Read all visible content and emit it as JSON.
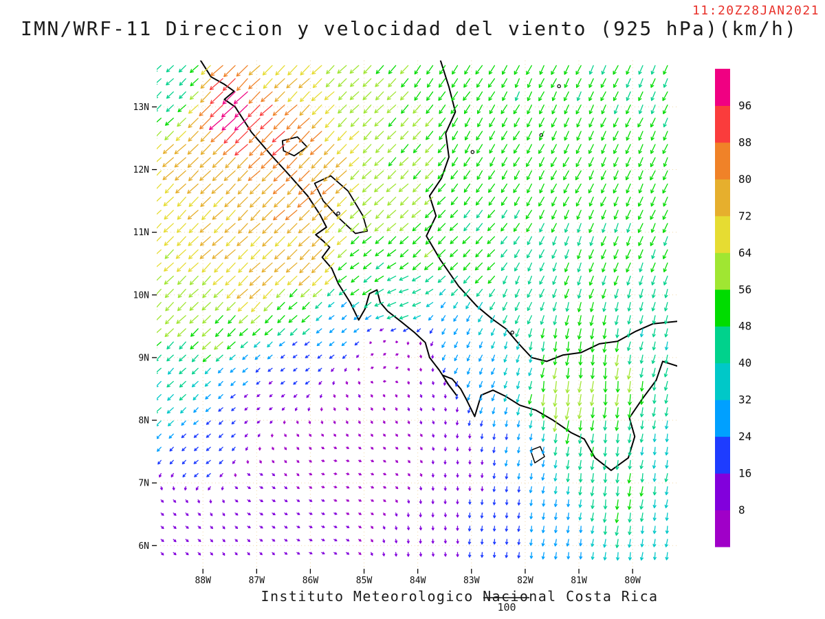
{
  "title": "IMN/WRF-11 Direccion y velocidad del viento (925 hPa)(km/h)",
  "timestamp": "11:20Z28JAN2021",
  "footer": {
    "credit": "Instituto Meteorologico Nacional Costa Rica",
    "vector_ref_label": "100"
  },
  "style": {
    "timestamp_color": "#e8312a",
    "grid_color": "#e0a83c",
    "coast_color": "#000000",
    "text_color": "#0f0f0f"
  },
  "chart_data": {
    "type": "vector-field-map",
    "model": "IMN/WRF-11",
    "field": "Direccion y velocidad del viento",
    "level": "925 hPa",
    "units": "km/h",
    "valid_time": "11:20Z28JAN2021",
    "axes": {
      "extent": {
        "lon_west": 88.86,
        "lon_east": 79.17,
        "lat_south": 5.63,
        "lat_north": 13.74
      },
      "lat_ticks": [
        {
          "value": 13,
          "label": "13N"
        },
        {
          "value": 12,
          "label": "12N"
        },
        {
          "value": 11,
          "label": "11N"
        },
        {
          "value": 10,
          "label": "10N"
        },
        {
          "value": 9,
          "label": "9N"
        },
        {
          "value": 8,
          "label": "8N"
        },
        {
          "value": 7,
          "label": "7N"
        },
        {
          "value": 6,
          "label": "6N"
        }
      ],
      "lon_ticks": [
        {
          "value": 88,
          "label": "88W"
        },
        {
          "value": 87,
          "label": "87W"
        },
        {
          "value": 86,
          "label": "86W"
        },
        {
          "value": 85,
          "label": "85W"
        },
        {
          "value": 84,
          "label": "84W"
        },
        {
          "value": 83,
          "label": "83W"
        },
        {
          "value": 82,
          "label": "82W"
        },
        {
          "value": 81,
          "label": "81W"
        },
        {
          "value": 80,
          "label": "80W"
        }
      ]
    },
    "colorbar": {
      "orientation": "vertical",
      "levels": [
        8,
        16,
        24,
        32,
        40,
        48,
        56,
        64,
        72,
        80,
        88,
        96
      ],
      "colors": [
        "#a000c8",
        "#8200dc",
        "#1e3cff",
        "#00a0ff",
        "#00c8c8",
        "#00d28c",
        "#00dc00",
        "#a0e632",
        "#e6dc32",
        "#e6af2d",
        "#f08228",
        "#fa3c3c",
        "#f00082"
      ]
    },
    "vector_reference_kmh": 100,
    "wind_grid_spacing_deg": {
      "lon": 0.23,
      "lat": 0.21
    },
    "wind_controls": [
      [
        88.6,
        13.4,
        -33,
        -32
      ],
      [
        87.3,
        13.0,
        -70,
        -68
      ],
      [
        86.5,
        12.6,
        -62,
        -60
      ],
      [
        87.9,
        12.2,
        -54,
        -53
      ],
      [
        88.7,
        11.4,
        -48,
        -47
      ],
      [
        86.9,
        11.5,
        -55,
        -54
      ],
      [
        85.9,
        11.9,
        -58,
        -57
      ],
      [
        85.9,
        10.6,
        -54,
        -53
      ],
      [
        86.9,
        10.2,
        -52,
        -51
      ],
      [
        88.6,
        9.9,
        -44,
        -43
      ],
      [
        87.6,
        9.4,
        -40,
        -40
      ],
      [
        88.6,
        8.6,
        -28,
        -28
      ],
      [
        87.9,
        7.6,
        -16,
        -14
      ],
      [
        88.5,
        6.3,
        8,
        -7
      ],
      [
        87.0,
        6.8,
        9,
        -5
      ],
      [
        85.8,
        6.3,
        8,
        -4
      ],
      [
        86.3,
        7.6,
        5,
        -6
      ],
      [
        84.9,
        7.1,
        6,
        -3
      ],
      [
        85.2,
        8.3,
        4,
        -7
      ],
      [
        86.2,
        9.0,
        -14,
        -10
      ],
      [
        85.4,
        9.5,
        -20,
        -16
      ],
      [
        84.6,
        9.0,
        6,
        4
      ],
      [
        83.9,
        8.3,
        3,
        -8
      ],
      [
        83.2,
        7.3,
        0,
        -12
      ],
      [
        83.8,
        6.2,
        1,
        -13
      ],
      [
        82.6,
        6.4,
        -2,
        -20
      ],
      [
        82.2,
        7.6,
        -4,
        -24
      ],
      [
        81.2,
        6.2,
        -4,
        -30
      ],
      [
        80.2,
        6.8,
        -6,
        -48
      ],
      [
        79.5,
        6.2,
        -5,
        -35
      ],
      [
        79.5,
        7.6,
        -6,
        -38
      ],
      [
        80.6,
        7.6,
        -6,
        -46
      ],
      [
        81.4,
        8.5,
        -8,
        -62
      ],
      [
        80.9,
        9.0,
        -6,
        -52
      ],
      [
        82.0,
        8.9,
        -10,
        -34
      ],
      [
        82.7,
        8.8,
        -12,
        -28
      ],
      [
        83.3,
        9.3,
        -14,
        -26
      ],
      [
        84.3,
        9.9,
        -44,
        -16
      ],
      [
        84.9,
        10.3,
        -40,
        -30
      ],
      [
        83.9,
        10.9,
        -40,
        -38
      ],
      [
        82.9,
        10.6,
        -34,
        -36
      ],
      [
        82.0,
        10.1,
        -18,
        -40
      ],
      [
        79.7,
        9.3,
        -10,
        -40
      ],
      [
        80.6,
        10.6,
        -18,
        -46
      ],
      [
        79.5,
        11.6,
        -20,
        -46
      ],
      [
        81.3,
        12.0,
        -24,
        -46
      ],
      [
        82.7,
        12.4,
        -26,
        -44
      ],
      [
        84.2,
        12.6,
        -40,
        -42
      ],
      [
        85.1,
        13.5,
        -42,
        -41
      ],
      [
        83.4,
        13.5,
        -30,
        -44
      ],
      [
        81.6,
        13.5,
        -22,
        -45
      ],
      [
        79.8,
        13.3,
        -20,
        -44
      ],
      [
        80.1,
        12.2,
        -22,
        -46
      ],
      [
        84.6,
        11.6,
        -44,
        -42
      ],
      [
        86.5,
        13.6,
        -52,
        -50
      ],
      [
        87.7,
        10.9,
        -50,
        -49
      ],
      [
        84.3,
        7.6,
        5,
        -5
      ],
      [
        85.6,
        7.2,
        7,
        -2
      ],
      [
        86.9,
        8.3,
        -8,
        -6
      ],
      [
        84.0,
        9.0,
        2,
        -6
      ],
      [
        81.5,
        9.1,
        -10,
        -50
      ],
      [
        86.3,
        9.7,
        -38,
        -36
      ],
      [
        87.3,
        8.8,
        -20,
        -18
      ],
      [
        80.4,
        8.7,
        -6,
        -58
      ]
    ],
    "geo": {
      "coastlines": [
        [
          [
            88.05,
            13.75
          ],
          [
            87.85,
            13.48
          ],
          [
            87.6,
            13.36
          ],
          [
            87.42,
            13.25
          ],
          [
            87.6,
            13.12
          ],
          [
            87.4,
            13.0
          ],
          [
            87.1,
            12.6
          ],
          [
            86.72,
            12.22
          ],
          [
            86.38,
            11.9
          ],
          [
            86.05,
            11.58
          ],
          [
            85.82,
            11.28
          ],
          [
            85.7,
            11.08
          ],
          [
            85.9,
            10.96
          ],
          [
            85.76,
            10.86
          ],
          [
            85.64,
            10.76
          ],
          [
            85.78,
            10.6
          ],
          [
            85.6,
            10.42
          ],
          [
            85.48,
            10.18
          ],
          [
            85.26,
            9.88
          ],
          [
            85.1,
            9.6
          ],
          [
            84.98,
            9.78
          ],
          [
            84.9,
            10.02
          ],
          [
            84.76,
            10.08
          ],
          [
            84.7,
            9.88
          ],
          [
            84.56,
            9.74
          ],
          [
            84.32,
            9.58
          ],
          [
            84.06,
            9.4
          ],
          [
            83.86,
            9.24
          ],
          [
            83.78,
            9.0
          ],
          [
            83.6,
            8.8
          ],
          [
            83.42,
            8.56
          ],
          [
            83.28,
            8.4
          ],
          [
            83.44,
            8.58
          ],
          [
            83.54,
            8.72
          ],
          [
            83.36,
            8.66
          ],
          [
            83.2,
            8.5
          ],
          [
            83.1,
            8.34
          ],
          [
            82.94,
            8.06
          ],
          [
            82.82,
            8.4
          ],
          [
            82.6,
            8.48
          ],
          [
            82.36,
            8.38
          ],
          [
            82.1,
            8.24
          ],
          [
            81.8,
            8.16
          ],
          [
            81.48,
            8.0
          ],
          [
            81.14,
            7.8
          ],
          [
            80.9,
            7.7
          ],
          [
            80.7,
            7.4
          ],
          [
            80.4,
            7.2
          ],
          [
            80.08,
            7.4
          ],
          [
            79.96,
            7.74
          ],
          [
            80.06,
            8.04
          ],
          [
            79.82,
            8.34
          ],
          [
            79.56,
            8.64
          ],
          [
            79.44,
            8.94
          ],
          [
            79.15,
            8.86
          ]
        ],
        [
          [
            83.58,
            13.75
          ],
          [
            83.42,
            13.32
          ],
          [
            83.3,
            12.92
          ],
          [
            83.48,
            12.58
          ],
          [
            83.42,
            12.2
          ],
          [
            83.56,
            11.86
          ],
          [
            83.78,
            11.58
          ],
          [
            83.66,
            11.26
          ],
          [
            83.84,
            10.94
          ],
          [
            83.58,
            10.56
          ],
          [
            83.24,
            10.14
          ],
          [
            82.9,
            9.82
          ],
          [
            82.62,
            9.62
          ],
          [
            82.36,
            9.46
          ],
          [
            82.12,
            9.22
          ],
          [
            81.88,
            9.0
          ],
          [
            81.6,
            8.94
          ],
          [
            81.3,
            9.04
          ],
          [
            80.96,
            9.08
          ],
          [
            80.62,
            9.22
          ],
          [
            80.28,
            9.26
          ],
          [
            79.94,
            9.42
          ],
          [
            79.62,
            9.54
          ],
          [
            79.15,
            9.58
          ]
        ]
      ],
      "lakes": [
        [
          [
            85.92,
            11.78
          ],
          [
            85.62,
            11.9
          ],
          [
            85.3,
            11.66
          ],
          [
            85.02,
            11.26
          ],
          [
            84.94,
            11.02
          ],
          [
            85.16,
            10.98
          ],
          [
            85.46,
            11.22
          ],
          [
            85.76,
            11.5
          ]
        ],
        [
          [
            86.52,
            12.46
          ],
          [
            86.24,
            12.52
          ],
          [
            86.06,
            12.36
          ],
          [
            86.3,
            12.22
          ],
          [
            86.5,
            12.3
          ]
        ]
      ],
      "islands": [
        [
          [
            81.9,
            7.52
          ],
          [
            81.72,
            7.58
          ],
          [
            81.64,
            7.42
          ],
          [
            81.82,
            7.32
          ]
        ]
      ],
      "island_dots": [
        [
          81.7,
          12.55
        ],
        [
          81.37,
          13.33
        ],
        [
          82.98,
          12.28
        ],
        [
          82.24,
          9.4
        ],
        [
          85.48,
          11.3
        ]
      ]
    }
  }
}
